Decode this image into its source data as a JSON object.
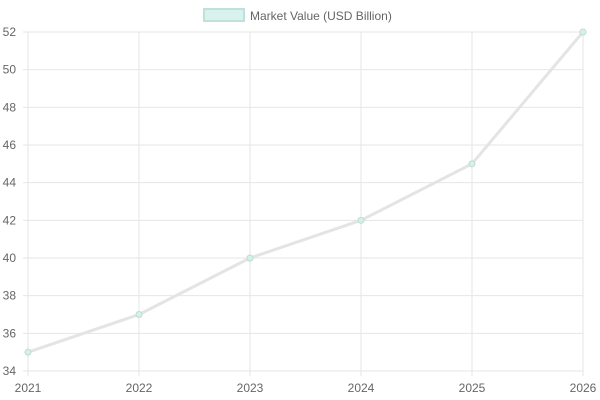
{
  "chart_data": {
    "type": "line",
    "x": [
      "2021",
      "2022",
      "2023",
      "2024",
      "2025",
      "2026"
    ],
    "series": [
      {
        "name": "Market Value (USD Billion)",
        "values": [
          35,
          37,
          40,
          42,
          45,
          52
        ]
      }
    ],
    "ylim": [
      34,
      52
    ],
    "yticks": [
      "34",
      "36",
      "38",
      "40",
      "42",
      "44",
      "46",
      "48",
      "50",
      "52"
    ],
    "grid": true,
    "legend": {
      "placement": "top-center",
      "label": "Market Value (USD Billion)"
    },
    "colors": {
      "line": "#e4e4e4",
      "point_fill": "#d8f0ec",
      "point_stroke": "#b8ddd6",
      "legend_fill": "#d9f2ee",
      "legend_stroke": "#bde2dc",
      "grid": "#e6e6e6",
      "text": "#666666"
    }
  }
}
